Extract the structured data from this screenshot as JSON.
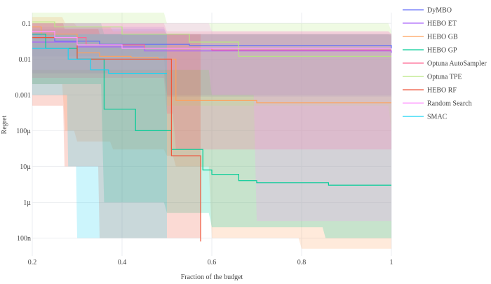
{
  "chart_data": {
    "type": "line",
    "xlabel": "Fraction of the budget",
    "ylabel": "Regret",
    "xlim": [
      0.2,
      1.0
    ],
    "ylim_log10": [
      -7.5,
      -0.7
    ],
    "y_scale": "log",
    "grid": true,
    "legend_position": "right",
    "x_ticks": [
      {
        "value": 0.2,
        "label": "0.2"
      },
      {
        "value": 0.4,
        "label": "0.4"
      },
      {
        "value": 0.6,
        "label": "0.6"
      },
      {
        "value": 0.8,
        "label": "0.8"
      },
      {
        "value": 1.0,
        "label": "1"
      }
    ],
    "y_ticks": [
      {
        "value": 0.1,
        "label": "0.1"
      },
      {
        "value": 0.01,
        "label": "0.01"
      },
      {
        "value": 0.001,
        "label": "0.001"
      },
      {
        "value": 0.0001,
        "label": "100µ"
      },
      {
        "value": 1e-05,
        "label": "10µ"
      },
      {
        "value": 1e-06,
        "label": "1µ"
      },
      {
        "value": 1e-07,
        "label": "100n"
      }
    ],
    "series": [
      {
        "name": "DyMBO",
        "color": "#636EFA",
        "line": [
          [
            0.2,
            0.05
          ],
          [
            0.25,
            0.032
          ],
          [
            0.35,
            0.026
          ],
          [
            0.55,
            0.024
          ],
          [
            1.0,
            0.02
          ]
        ],
        "band": {
          "x": [
            0.2,
            0.5,
            1.0
          ],
          "upper": [
            0.07,
            0.05,
            0.045
          ],
          "lower": [
            0.012,
            0.0009,
            0.0009
          ]
        }
      },
      {
        "name": "HEBO ET",
        "color": "#AB63FA",
        "line": [
          [
            0.2,
            0.03
          ],
          [
            0.3,
            0.022
          ],
          [
            0.45,
            0.017
          ],
          [
            1.0,
            0.015
          ]
        ],
        "band": {
          "x": [
            0.2,
            0.5,
            1.0
          ],
          "upper": [
            0.08,
            0.05,
            0.05
          ],
          "lower": [
            0.004,
            0.001,
            0.001
          ]
        }
      },
      {
        "name": "HEBO GB",
        "color": "#FFA15A",
        "line": [
          [
            0.2,
            0.08
          ],
          [
            0.22,
            0.05
          ],
          [
            0.3,
            0.015
          ],
          [
            0.35,
            0.012
          ],
          [
            0.42,
            0.011
          ],
          [
            0.48,
            0.01
          ],
          [
            0.52,
            0.0007
          ],
          [
            0.7,
            0.0006
          ],
          [
            0.8,
            0.0006
          ],
          [
            1.0,
            0.0006
          ]
        ],
        "band": {
          "x": [
            0.2,
            0.27,
            0.3,
            0.38,
            0.5,
            0.52,
            0.6,
            0.8,
            1.0
          ],
          "upper": [
            0.15,
            0.1,
            0.08,
            0.06,
            0.05,
            0.05,
            0.05,
            0.05,
            0.05
          ],
          "lower": [
            0.002,
            0.0001,
            5e-05,
            3e-05,
            2e-05,
            1e-05,
            1e-07,
            5e-08,
            5e-08
          ]
        }
      },
      {
        "name": "HEBO GP",
        "color": "#00CC96",
        "line": [
          [
            0.2,
            0.05
          ],
          [
            0.23,
            0.02
          ],
          [
            0.3,
            0.01
          ],
          [
            0.36,
            0.0004
          ],
          [
            0.4,
            0.0004
          ],
          [
            0.43,
            0.0001
          ],
          [
            0.49,
            0.0001
          ],
          [
            0.51,
            3e-05
          ],
          [
            0.58,
            8e-06
          ],
          [
            0.6,
            6e-06
          ],
          [
            0.66,
            4e-06
          ],
          [
            0.68,
            4e-06
          ],
          [
            0.7,
            3.5e-06
          ],
          [
            0.78,
            3.5e-06
          ],
          [
            0.86,
            3e-06
          ],
          [
            1.0,
            3e-06
          ]
        ],
        "band": {
          "x": [
            0.2,
            0.36,
            0.5,
            0.6,
            0.8,
            0.85,
            1.0
          ],
          "upper": [
            0.1,
            0.05,
            0.05,
            0.05,
            0.05,
            0.05,
            0.05
          ],
          "lower": [
            0.002,
            1e-06,
            5e-07,
            2e-07,
            2e-07,
            1e-07,
            1e-07
          ]
        }
      },
      {
        "name": "Optuna AutoSampler",
        "color": "#FF6692",
        "line": [
          [
            0.2,
            0.06
          ],
          [
            0.25,
            0.04
          ],
          [
            0.32,
            0.025
          ],
          [
            0.45,
            0.02
          ],
          [
            0.6,
            0.018
          ],
          [
            1.0,
            0.018
          ]
        ],
        "band": {
          "x": [
            0.2,
            0.5,
            0.52,
            1.0
          ],
          "upper": [
            0.1,
            0.06,
            0.06,
            0.05
          ],
          "lower": [
            0.003,
            0.0003,
            3e-05,
            3e-05
          ]
        }
      },
      {
        "name": "Optuna TPE",
        "color": "#B6E880",
        "line": [
          [
            0.2,
            0.11
          ],
          [
            0.25,
            0.08
          ],
          [
            0.4,
            0.05
          ],
          [
            0.55,
            0.03
          ],
          [
            0.66,
            0.012
          ],
          [
            0.8,
            0.012
          ],
          [
            1.0,
            0.012
          ]
        ],
        "band": {
          "x": [
            0.2,
            0.5,
            1.0
          ],
          "upper": [
            0.2,
            0.1,
            0.06
          ],
          "lower": [
            0.005,
            0.0005,
            0.0001
          ]
        }
      },
      {
        "name": "HEBO RF",
        "color": "#EF553B",
        "line": [
          [
            0.2,
            0.04
          ],
          [
            0.3,
            0.01
          ],
          [
            0.4,
            0.01
          ],
          [
            0.5,
            0.01
          ],
          [
            0.51,
            2e-05
          ],
          [
            0.57,
            2e-05
          ],
          [
            0.575,
            8e-08
          ]
        ],
        "band": {
          "x": [
            0.2,
            0.27,
            0.35,
            0.45,
            0.5,
            0.58
          ],
          "upper": [
            0.1,
            0.07,
            0.05,
            0.05,
            0.05,
            0.05
          ],
          "lower": [
            0.0005,
            1e-05,
            1e-07,
            1e-07,
            1e-07,
            1e-07
          ]
        }
      },
      {
        "name": "Random Search",
        "color": "#FF97FF",
        "line": [
          [
            0.2,
            0.06
          ],
          [
            0.25,
            0.04
          ],
          [
            0.3,
            0.025
          ],
          [
            0.4,
            0.02
          ],
          [
            0.6,
            0.02
          ],
          [
            1.0,
            0.02
          ]
        ],
        "band": {
          "x": [
            0.2,
            0.6,
            0.7,
            1.0
          ],
          "upper": [
            0.1,
            0.06,
            0.06,
            0.05
          ],
          "lower": [
            0.005,
            0.001,
            3e-07,
            3e-07
          ]
        }
      },
      {
        "name": "SMAC",
        "color": "#19D3F3",
        "line": [
          [
            0.2,
            0.02
          ],
          [
            0.28,
            0.01
          ],
          [
            0.33,
            0.005
          ],
          [
            0.37,
            0.004
          ],
          [
            0.5,
            0.004
          ]
        ],
        "band": {
          "x": [
            0.2,
            0.28,
            0.3,
            0.35,
            0.5
          ],
          "upper": [
            0.05,
            0.05,
            0.05,
            0.05,
            0.05
          ],
          "lower": [
            0.001,
            1e-05,
            1e-07,
            1e-07,
            1e-07
          ]
        }
      }
    ]
  }
}
